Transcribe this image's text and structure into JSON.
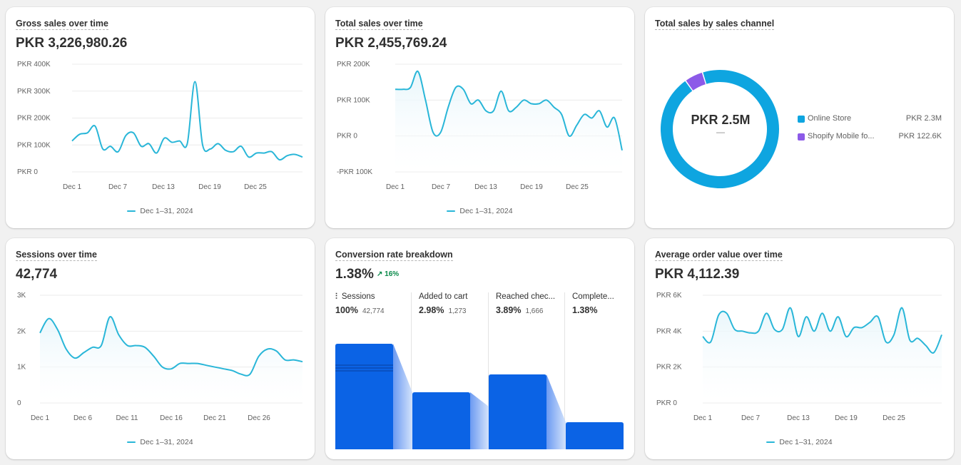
{
  "colors": {
    "line": "#29b6d8",
    "area": "#e8f6fb",
    "blue": "#0b63e5",
    "donut_main": "#0ea5e0",
    "donut_secondary": "#8c5ae8",
    "positive": "#0a8a4a"
  },
  "cards": {
    "gross_sales": {
      "title": "Gross sales over time",
      "value": "PKR 3,226,980.26",
      "legend": "Dec 1–31, 2024"
    },
    "total_sales": {
      "title": "Total sales over time",
      "value": "PKR 2,455,769.24",
      "legend": "Dec 1–31, 2024"
    },
    "channel": {
      "title": "Total sales by sales channel",
      "center_value": "PKR 2.5M",
      "center_sub": "—",
      "items": [
        {
          "name": "Online Store",
          "value": "PKR 2.3M",
          "color": "#0ea5e0"
        },
        {
          "name": "Shopify Mobile fo...",
          "value": "PKR 122.6K",
          "color": "#8c5ae8"
        }
      ]
    },
    "sessions": {
      "title": "Sessions over time",
      "value": "42,774",
      "legend": "Dec 1–31, 2024"
    },
    "conversion": {
      "title": "Conversion rate breakdown",
      "value": "1.38%",
      "badge": "↗ 16%",
      "steps": [
        {
          "label": "Sessions",
          "pct": "100%",
          "count": "42,774",
          "icon": "sessions-icon"
        },
        {
          "label": "Added to cart",
          "pct": "2.98%",
          "count": "1,273"
        },
        {
          "label": "Reached chec...",
          "pct": "3.89%",
          "count": "1,666"
        },
        {
          "label": "Complete...",
          "pct": "1.38%",
          "count": ""
        }
      ]
    },
    "aov": {
      "title": "Average order value over time",
      "value": "PKR 4,112.39",
      "legend": "Dec 1–31, 2024"
    }
  },
  "chart_data": [
    {
      "type": "line",
      "title": "Gross sales over time",
      "x_ticks": [
        "Dec 1",
        "Dec 7",
        "Dec 13",
        "Dec 19",
        "Dec 25"
      ],
      "y_ticks": [
        "PKR 400K",
        "PKR 300K",
        "PKR 200K",
        "PKR 100K",
        "PKR 0"
      ],
      "ylim": [
        0,
        400000
      ],
      "grid": true,
      "series": [
        {
          "name": "Dec 1–31, 2024",
          "values": [
            115000,
            140000,
            145000,
            170000,
            85000,
            95000,
            75000,
            135000,
            145000,
            95000,
            105000,
            70000,
            125000,
            110000,
            115000,
            105000,
            335000,
            100000,
            85000,
            105000,
            80000,
            75000,
            95000,
            55000,
            70000,
            70000,
            75000,
            45000,
            60000,
            65000,
            55000
          ]
        }
      ]
    },
    {
      "type": "area",
      "title": "Total sales over time",
      "x_ticks": [
        "Dec 1",
        "Dec 7",
        "Dec 13",
        "Dec 19",
        "Dec 25"
      ],
      "y_ticks": [
        "PKR 200K",
        "PKR 100K",
        "PKR 0",
        "-PKR 100K"
      ],
      "ylim": [
        -100000,
        200000
      ],
      "grid": true,
      "series": [
        {
          "name": "Dec 1–31, 2024",
          "values": [
            130000,
            130000,
            135000,
            180000,
            100000,
            10000,
            10000,
            80000,
            135000,
            130000,
            90000,
            100000,
            70000,
            70000,
            125000,
            70000,
            80000,
            100000,
            90000,
            90000,
            100000,
            80000,
            60000,
            0,
            30000,
            60000,
            50000,
            70000,
            25000,
            50000,
            -40000
          ]
        }
      ]
    },
    {
      "type": "donut",
      "title": "Total sales by sales channel",
      "categories": [
        "Online Store",
        "Shopify Mobile fo..."
      ],
      "values": [
        2300000,
        122600
      ]
    },
    {
      "type": "area",
      "title": "Sessions over time",
      "x_ticks": [
        "Dec 1",
        "Dec 6",
        "Dec 11",
        "Dec 16",
        "Dec 21",
        "Dec 26"
      ],
      "y_ticks": [
        "3K",
        "2K",
        "1K",
        "0"
      ],
      "ylim": [
        0,
        3000
      ],
      "grid": true,
      "series": [
        {
          "name": "Dec 1–31, 2024",
          "values": [
            1950,
            2350,
            2050,
            1500,
            1250,
            1400,
            1550,
            1600,
            2400,
            1900,
            1600,
            1600,
            1550,
            1300,
            1000,
            950,
            1100,
            1100,
            1100,
            1050,
            1000,
            950,
            900,
            800,
            800,
            1300,
            1500,
            1450,
            1200,
            1200,
            1150
          ]
        }
      ]
    },
    {
      "type": "bar",
      "title": "Conversion rate breakdown",
      "categories": [
        "Sessions",
        "Added to cart",
        "Reached chec...",
        "Complete..."
      ],
      "values": [
        100,
        2.98,
        3.89,
        1.38
      ]
    },
    {
      "type": "area",
      "title": "Average order value over time",
      "x_ticks": [
        "Dec 1",
        "Dec 7",
        "Dec 13",
        "Dec 19",
        "Dec 25"
      ],
      "y_ticks": [
        "PKR 6K",
        "PKR 4K",
        "PKR 2K",
        "PKR 0"
      ],
      "ylim": [
        0,
        6000
      ],
      "grid": true,
      "series": [
        {
          "name": "Dec 1–31, 2024",
          "values": [
            3700,
            3400,
            4900,
            5000,
            4100,
            4000,
            3900,
            4000,
            5000,
            4100,
            4100,
            5300,
            3700,
            4800,
            4000,
            5000,
            4000,
            4800,
            3700,
            4200,
            4200,
            4500,
            4800,
            3400,
            3800,
            5300,
            3500,
            3600,
            3200,
            2800,
            3800
          ]
        }
      ]
    }
  ]
}
